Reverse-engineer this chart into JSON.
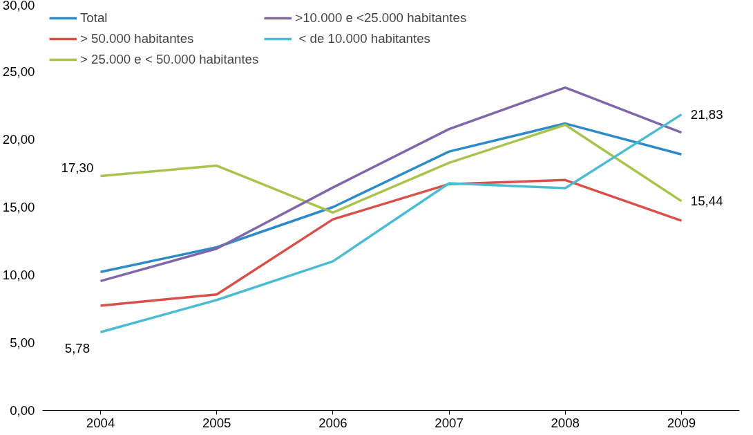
{
  "chart_data": {
    "type": "line",
    "categories": [
      "2004",
      "2005",
      "2006",
      "2007",
      "2008",
      "2009"
    ],
    "ylim": [
      0,
      30
    ],
    "yticks": [
      {
        "value": 0,
        "label": "0,00"
      },
      {
        "value": 5,
        "label": "5,00"
      },
      {
        "value": 10,
        "label": "10,00"
      },
      {
        "value": 15,
        "label": "15,00"
      },
      {
        "value": 20,
        "label": "20,00"
      },
      {
        "value": 25,
        "label": "25,00"
      },
      {
        "value": 30,
        "label": "30,00"
      }
    ],
    "grid": false,
    "legend": "top left",
    "line_style": "solid",
    "marker": "none",
    "series": [
      {
        "name": "Total",
        "color": "#2e8bc8",
        "values": [
          10.22,
          12.04,
          15.0,
          19.1,
          21.17,
          18.89
        ]
      },
      {
        "name": "> 50.000 habitantes",
        "color": "#d9504a",
        "values": [
          7.73,
          8.56,
          14.1,
          16.7,
          17.0,
          14.0
        ]
      },
      {
        "name": "> 25.000 e < 50.000 habitantes",
        "color": "#a8c44c",
        "values": [
          17.3,
          18.06,
          14.6,
          18.27,
          21.07,
          15.44
        ],
        "value_labels": [
          "17,30",
          null,
          null,
          null,
          null,
          "15,44"
        ]
      },
      {
        "name": ">10.000 e <25.000 habitantes",
        "color": "#8067aa",
        "values": [
          9.55,
          11.94,
          16.45,
          20.76,
          23.82,
          20.5
        ]
      },
      {
        "name": " < de 10.000 habitantes",
        "color": "#4bbcd2",
        "values": [
          5.78,
          8.15,
          11.0,
          16.76,
          16.4,
          21.83
        ],
        "value_labels": [
          "5,78",
          null,
          null,
          null,
          null,
          "21,83"
        ]
      }
    ]
  }
}
